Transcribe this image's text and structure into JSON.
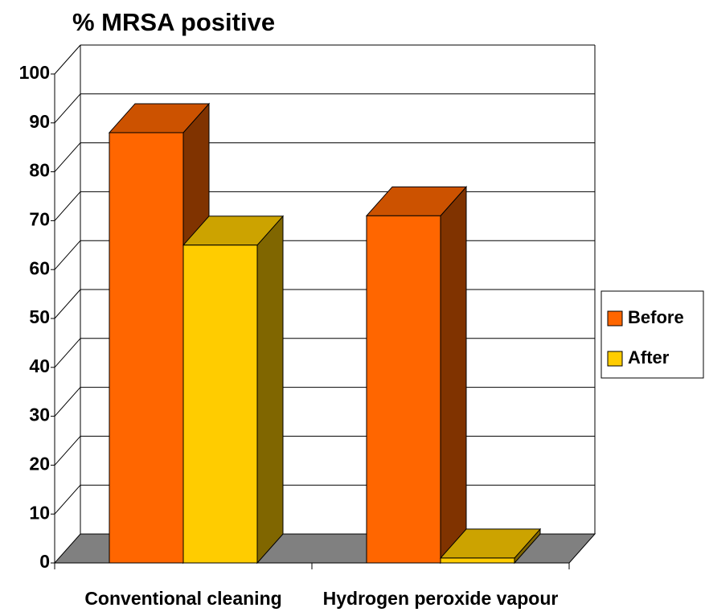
{
  "chart_data": {
    "type": "bar3d",
    "title": "% MRSA positive",
    "categories": [
      "Conventional cleaning",
      "Hydrogen peroxide vapour"
    ],
    "series": [
      {
        "name": "Before",
        "color": "#ff6600",
        "values": [
          88,
          71
        ]
      },
      {
        "name": "After",
        "color": "#ffcc00",
        "values": [
          65,
          1
        ]
      }
    ],
    "ylim": [
      0,
      100
    ],
    "yticks": [
      0,
      10,
      20,
      30,
      40,
      50,
      60,
      70,
      80,
      90,
      100
    ],
    "grid": true,
    "legend": "right"
  }
}
